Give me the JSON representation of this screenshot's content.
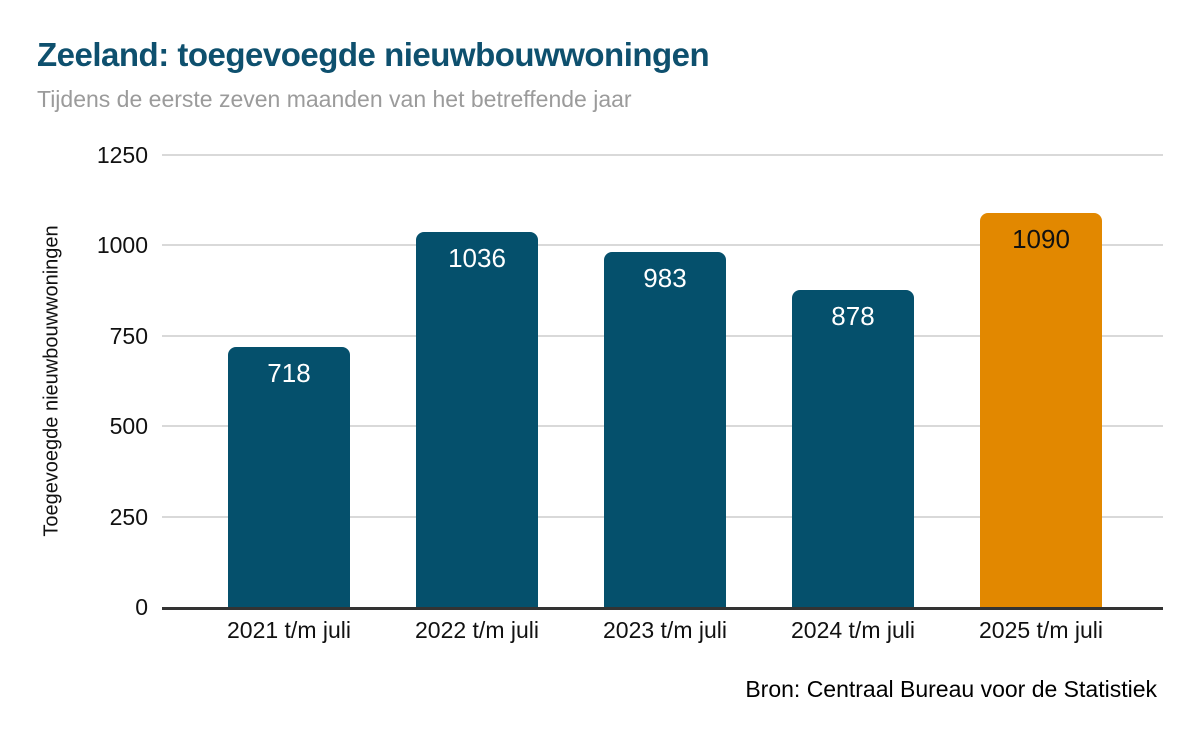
{
  "header": {
    "title": "Zeeland: toegevoegde nieuwbouwwoningen",
    "subtitle": "Tijdens de eerste zeven maanden van het betreffende jaar"
  },
  "chart_data": {
    "type": "bar",
    "title": "Zeeland: toegevoegde nieuwbouwwoningen",
    "subtitle": "Tijdens de eerste zeven maanden van het betreffende jaar",
    "categories": [
      "2021 t/m juli",
      "2022 t/m juli",
      "2023 t/m juli",
      "2024 t/m juli",
      "2025 t/m juli"
    ],
    "values": [
      718,
      1036,
      983,
      878,
      1090
    ],
    "xlabel": "",
    "ylabel": "Toegevoegde nieuwbouwwoningen",
    "ylim": [
      0,
      1250
    ],
    "yticks": [
      0,
      250,
      500,
      750,
      1000,
      1250
    ],
    "grid": "horizontal",
    "legend_position": "none",
    "bar_colors": [
      "#05506c",
      "#05506c",
      "#05506c",
      "#05506c",
      "#e28800"
    ],
    "value_label_colors": [
      "#ffffff",
      "#ffffff",
      "#ffffff",
      "#ffffff",
      "#111111"
    ],
    "source": "Bron: Centraal Bureau voor de Statistiek"
  },
  "colors": {
    "title": "#0e506e",
    "subtitle": "#9b9b9b",
    "bar_default": "#05506c",
    "bar_highlight": "#e28800",
    "gridline": "#d9d9d9",
    "axis_line": "#333333",
    "background": "#ffffff"
  }
}
